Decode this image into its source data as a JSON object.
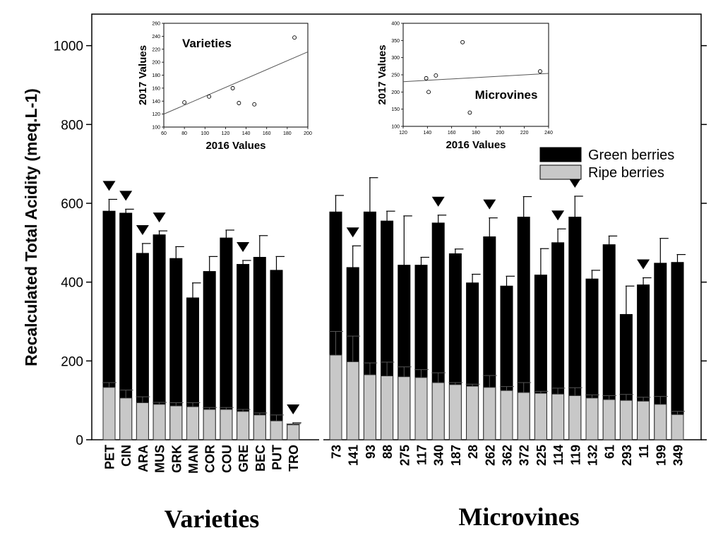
{
  "chart_data": {
    "type": "bar",
    "ylabel": "Recalculated Total Acidity (meq.L-1)",
    "ylim": [
      0,
      1080
    ],
    "yticks": [
      0,
      200,
      400,
      600,
      800,
      1000
    ],
    "legend": {
      "placement": "right, below insets",
      "entries": [
        {
          "label": "Green berries",
          "color": "#000000"
        },
        {
          "label": "Ripe berries",
          "color": "#c8c8c8"
        }
      ]
    },
    "series": [
      {
        "name": "Green berries",
        "color": "#000000"
      },
      {
        "name": "Ripe berries",
        "color": "#c8c8c8"
      }
    ],
    "groups": [
      {
        "label": "Varieties",
        "categories": [
          "PET",
          "CIN",
          "ARA",
          "MUS",
          "GRK",
          "MAN",
          "COR",
          "COU",
          "GRE",
          "BEC",
          "PUT",
          "TRO"
        ],
        "green": [
          580,
          575,
          473,
          520,
          460,
          360,
          427,
          512,
          445,
          463,
          430,
          40
        ],
        "green_err": [
          30,
          10,
          25,
          10,
          30,
          38,
          38,
          20,
          10,
          55,
          35,
          3
        ],
        "ripe": [
          133,
          106,
          94,
          90,
          86,
          84,
          77,
          77,
          72,
          63,
          48,
          38
        ],
        "ripe_err": [
          12,
          20,
          15,
          5,
          8,
          10,
          5,
          5,
          5,
          5,
          15,
          2
        ],
        "marked": [
          "PET",
          "CIN",
          "ARA",
          "MUS",
          "GRE",
          "TRO"
        ]
      },
      {
        "label": "Microvines",
        "categories": [
          "73",
          "141",
          "93",
          "88",
          "275",
          "117",
          "340",
          "187",
          "28",
          "262",
          "362",
          "372",
          "225",
          "114",
          "119",
          "132",
          "61",
          "293",
          "11",
          "199",
          "349"
        ],
        "green": [
          578,
          437,
          578,
          555,
          443,
          443,
          550,
          472,
          398,
          515,
          390,
          565,
          418,
          500,
          565,
          408,
          495,
          318,
          393,
          448,
          450
        ],
        "green_err": [
          42,
          55,
          87,
          25,
          125,
          20,
          20,
          12,
          22,
          48,
          25,
          52,
          67,
          35,
          53,
          22,
          22,
          72,
          18,
          63,
          20
        ],
        "ripe": [
          215,
          198,
          165,
          162,
          160,
          158,
          145,
          140,
          136,
          133,
          125,
          120,
          118,
          116,
          112,
          106,
          102,
          100,
          98,
          90,
          64
        ],
        "ripe_err": [
          60,
          65,
          30,
          35,
          25,
          20,
          25,
          5,
          5,
          30,
          10,
          25,
          5,
          15,
          20,
          8,
          10,
          15,
          10,
          20,
          8
        ],
        "marked": [
          "141",
          "340",
          "262",
          "114",
          "119",
          "11"
        ]
      }
    ],
    "insets": [
      {
        "title": "Varieties",
        "xlabel": "2016 Values",
        "ylabel": "2017 Values",
        "xlim": [
          60,
          200
        ],
        "xticks": [
          60,
          80,
          100,
          120,
          140,
          160,
          180,
          200
        ],
        "ylim": [
          100,
          260
        ],
        "yticks": [
          100,
          120,
          140,
          160,
          180,
          200,
          220,
          240,
          260
        ],
        "points": [
          [
            80,
            138
          ],
          [
            104,
            147
          ],
          [
            127,
            160
          ],
          [
            133,
            137
          ],
          [
            148,
            135
          ],
          [
            187,
            238
          ]
        ],
        "fit_line": [
          [
            60,
            120
          ],
          [
            200,
            216
          ]
        ]
      },
      {
        "title": "Microvines",
        "xlabel": "2016 Values",
        "ylabel": "2017 Values",
        "xlim": [
          120,
          240
        ],
        "xticks": [
          120,
          140,
          160,
          180,
          200,
          220,
          240
        ],
        "ylim": [
          100,
          400
        ],
        "yticks": [
          100,
          150,
          200,
          250,
          300,
          350,
          400
        ],
        "points": [
          [
            139,
            240
          ],
          [
            141,
            200
          ],
          [
            147,
            248
          ],
          [
            169,
            345
          ],
          [
            175,
            140
          ],
          [
            233,
            260
          ]
        ],
        "fit_line": [
          [
            120,
            230
          ],
          [
            240,
            254
          ]
        ]
      }
    ]
  }
}
